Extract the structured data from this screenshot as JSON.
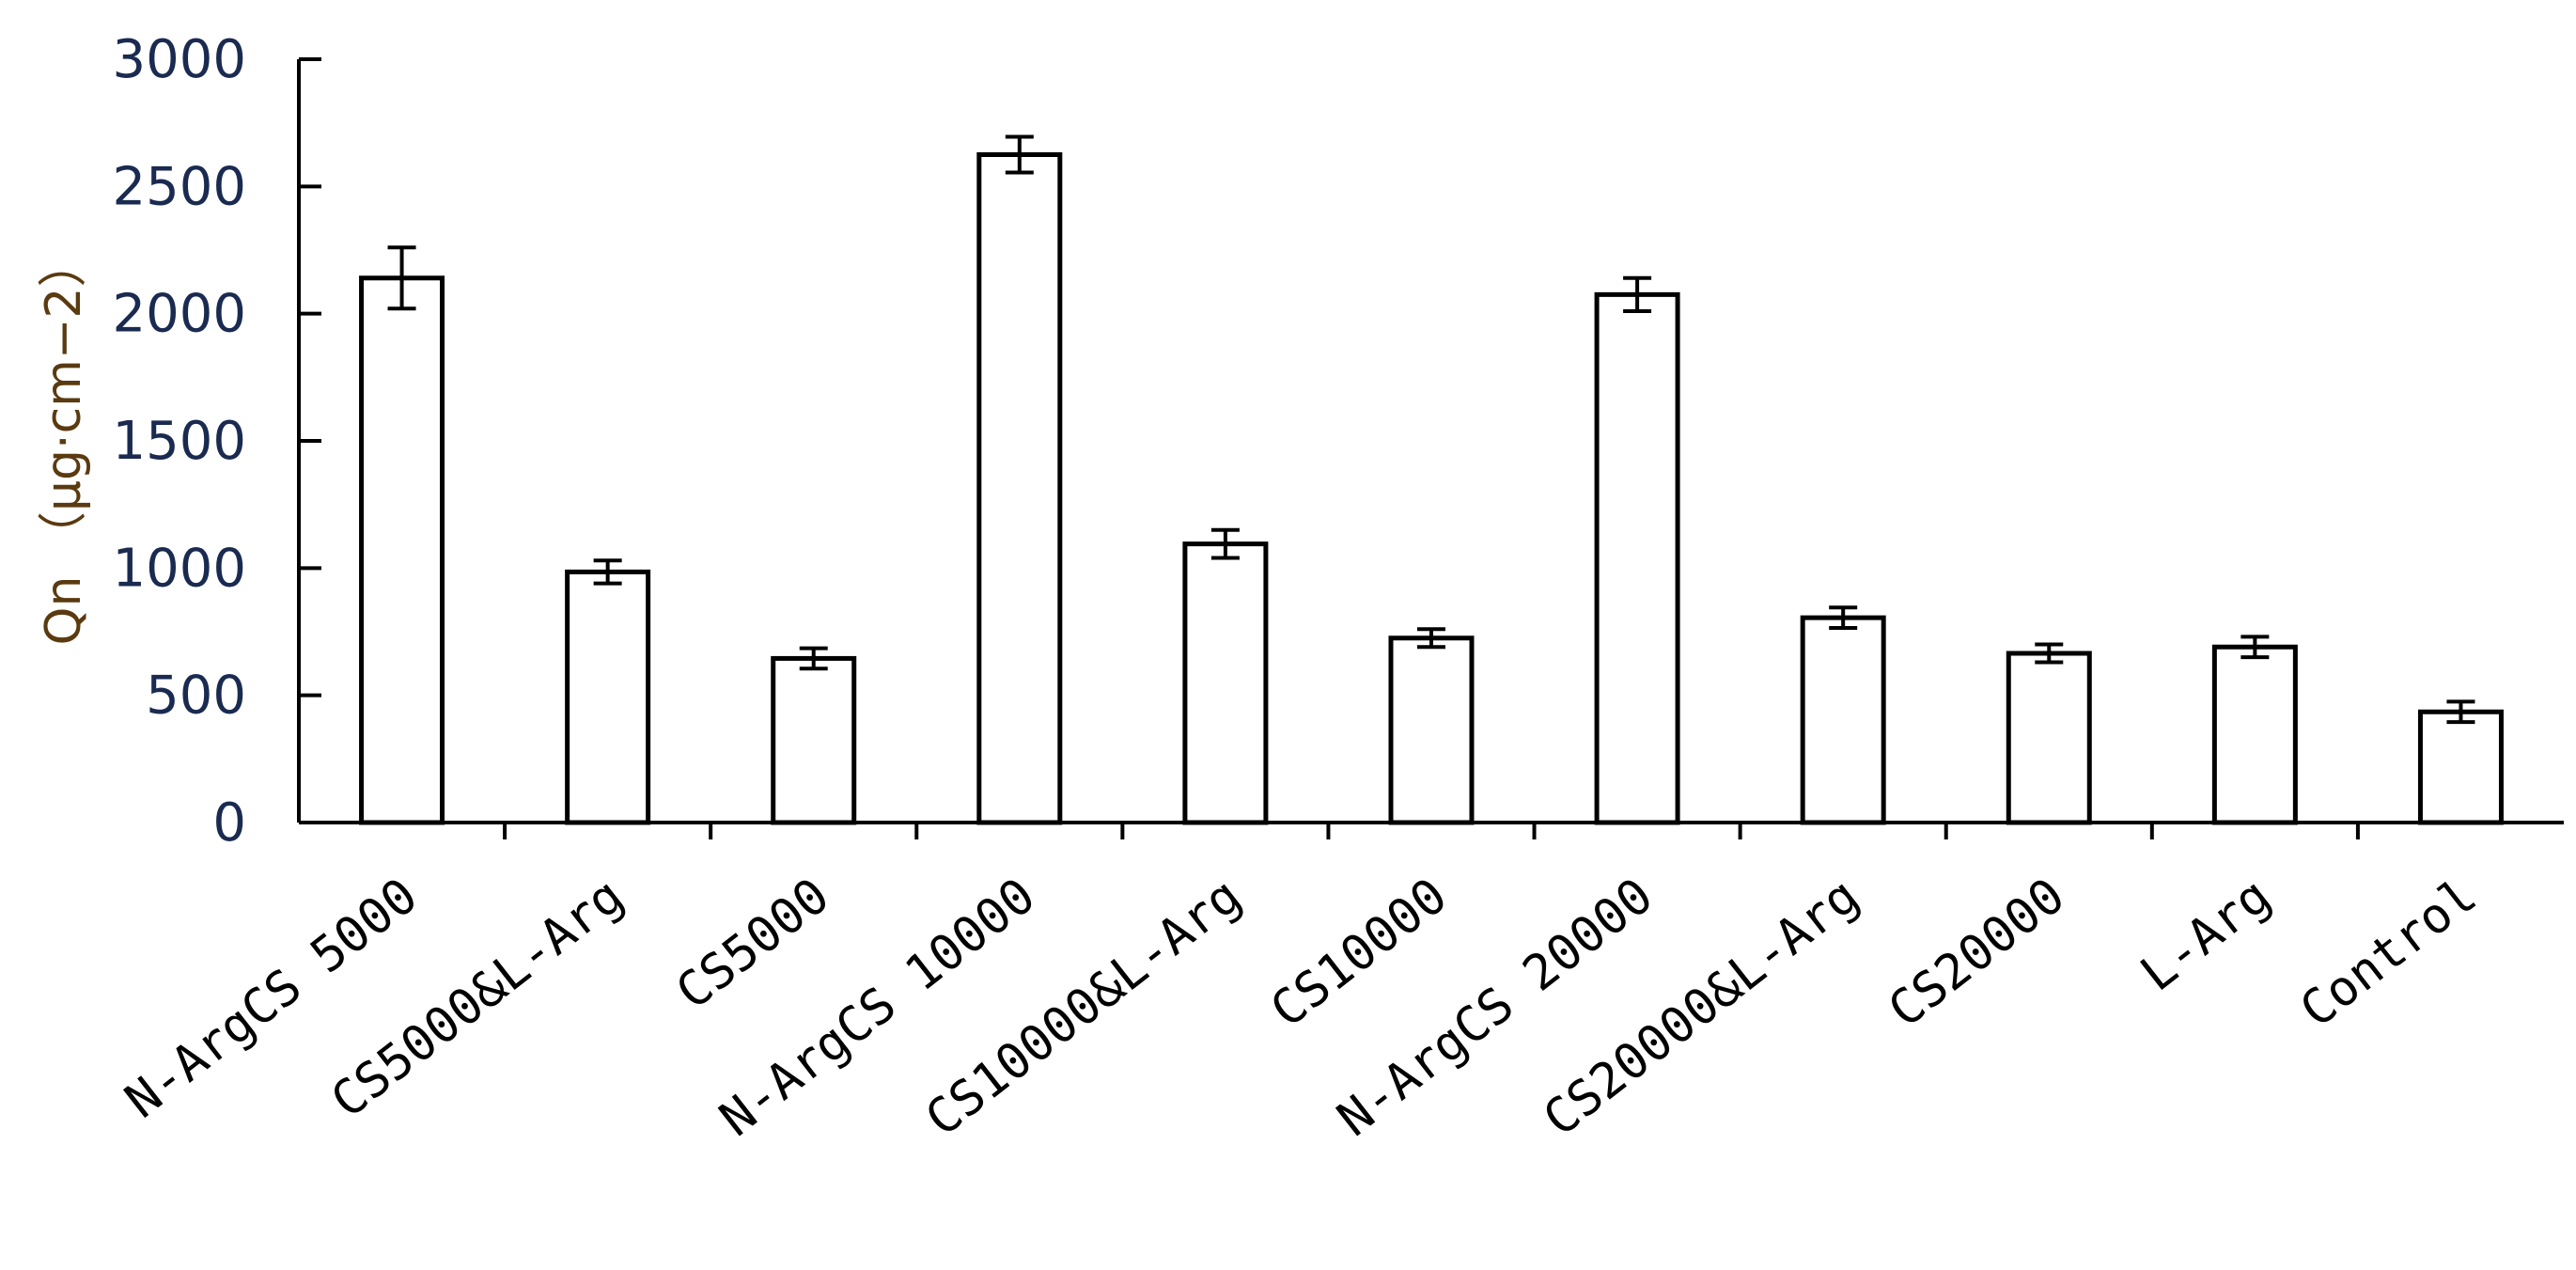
{
  "chart_data": {
    "type": "bar",
    "title": "",
    "xlabel": "",
    "ylabel": "Qn （μg·cm−2）",
    "ylim": [
      0,
      3000
    ],
    "yticks": [
      0,
      500,
      1000,
      1500,
      2000,
      2500,
      3000
    ],
    "grid": false,
    "legend": "none",
    "categories": [
      "N-ArgCS 5000",
      "CS5000&L-Arg",
      "CS5000",
      "N-ArgCS 10000",
      "CS10000&L-Arg",
      "CS10000",
      "N-ArgCS 20000",
      "CS20000&L-Arg",
      "CS20000",
      "L-Arg",
      "Control"
    ],
    "values": [
      2140,
      985,
      645,
      2625,
      1095,
      725,
      2075,
      805,
      665,
      690,
      435
    ],
    "error": [
      120,
      45,
      40,
      70,
      55,
      35,
      65,
      40,
      35,
      40,
      40
    ]
  }
}
